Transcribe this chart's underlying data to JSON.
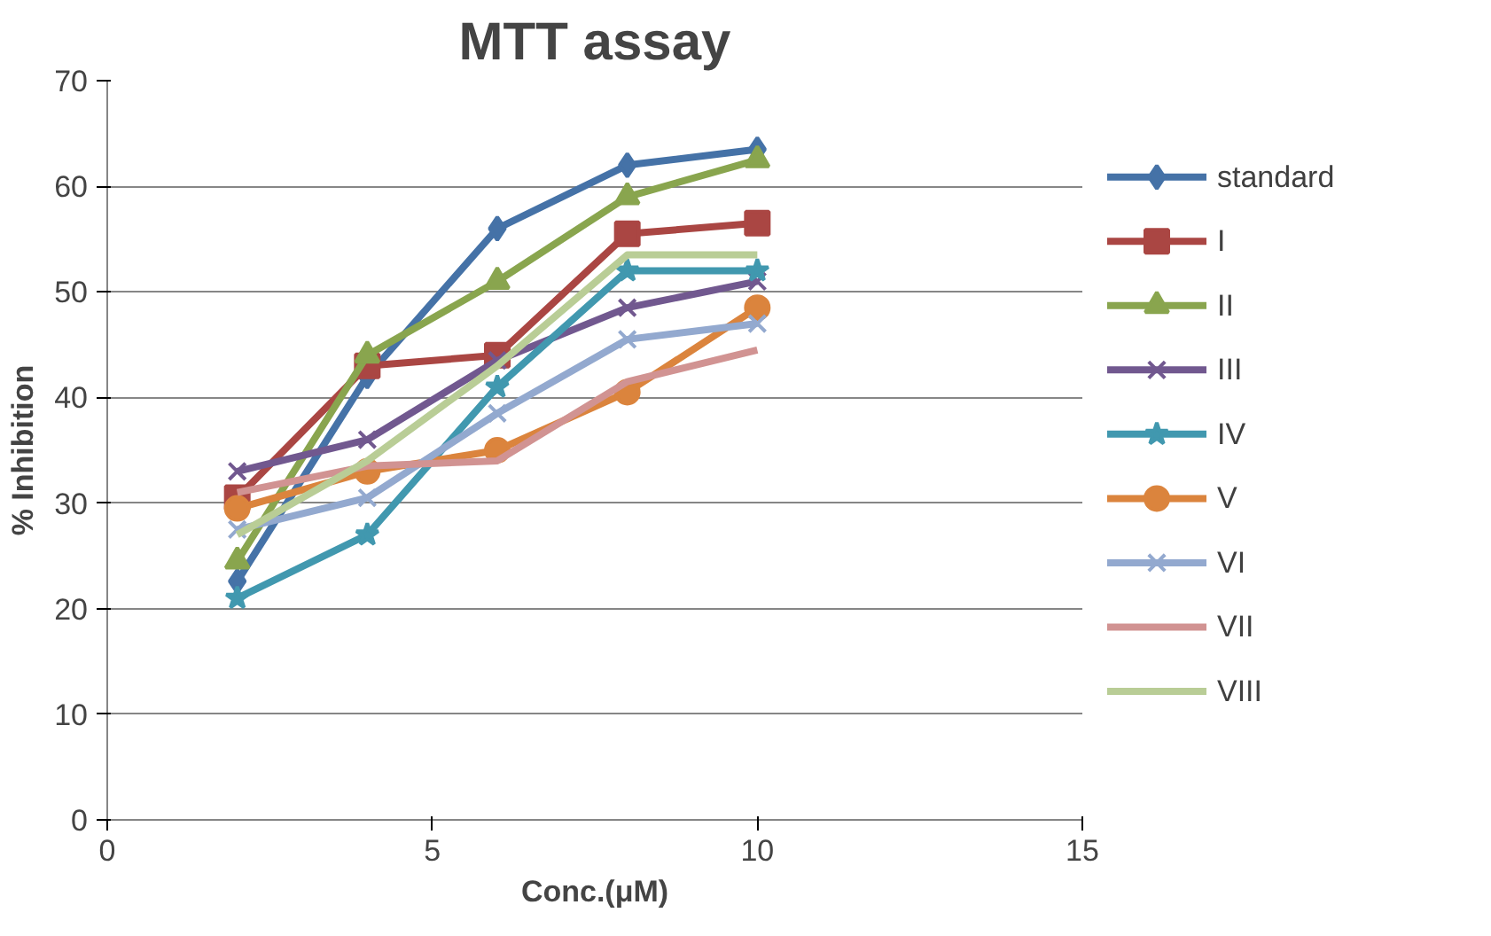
{
  "chart_data": {
    "type": "line",
    "title": "MTT assay",
    "xlabel": "Conc.(μM)",
    "ylabel": "% Inhibition",
    "x": [
      2,
      4,
      6,
      8,
      10
    ],
    "xlim": [
      0,
      15
    ],
    "xticks": [
      0,
      5,
      10,
      15
    ],
    "ylim": [
      0,
      70
    ],
    "yticks": [
      0,
      10,
      20,
      30,
      40,
      50,
      60,
      70
    ],
    "grid": "y",
    "legend": "right",
    "series": [
      {
        "name": "standard",
        "color": "#4572a7",
        "marker": "diamond",
        "values": [
          22.6,
          42,
          56,
          62,
          63.5
        ]
      },
      {
        "name": "I",
        "color": "#aa4643",
        "marker": "square",
        "values": [
          30.5,
          43,
          44,
          55.5,
          56.5
        ]
      },
      {
        "name": "II",
        "color": "#89a54e",
        "marker": "triangle",
        "values": [
          24.5,
          44,
          51,
          59,
          62.5
        ]
      },
      {
        "name": "III",
        "color": "#71588f",
        "marker": "cross",
        "values": [
          33,
          36,
          43.5,
          48.5,
          51
        ]
      },
      {
        "name": "IV",
        "color": "#4198af",
        "marker": "star",
        "values": [
          21,
          27,
          41,
          52,
          52
        ]
      },
      {
        "name": "V",
        "color": "#db843d",
        "marker": "circle",
        "values": [
          29.5,
          33,
          35,
          40.5,
          48.5
        ]
      },
      {
        "name": "VI",
        "color": "#93a9cf",
        "marker": "cross",
        "values": [
          27.5,
          30.5,
          38.5,
          45.5,
          47
        ]
      },
      {
        "name": "VII",
        "color": "#d19392",
        "marker": "none",
        "values": [
          31,
          33.5,
          34,
          41.5,
          44.5
        ]
      },
      {
        "name": "VIII",
        "color": "#b9cd96",
        "marker": "none",
        "values": [
          27,
          34,
          43,
          53.5,
          53.5
        ]
      }
    ]
  }
}
